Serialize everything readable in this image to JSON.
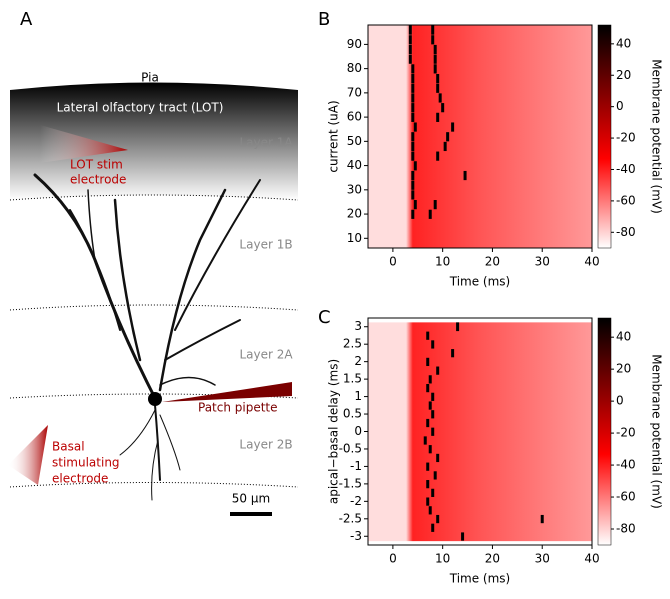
{
  "panel_a": {
    "label": "A",
    "pia": "Pia",
    "lot": "Lateral olfactory tract (LOT)",
    "layers": [
      "Layer 1A",
      "Layer 1B",
      "Layer 2A",
      "Layer 2B"
    ],
    "lot_stim": [
      "LOT stim",
      "electrode"
    ],
    "patch": "Patch pipette",
    "basal": [
      "Basal",
      "stimulating",
      "electrode"
    ],
    "scale": "50 µm"
  },
  "chart_data": [
    {
      "type": "heatmap",
      "panel": "B",
      "xlabel": "Time (ms)",
      "ylabel": "current (uA)",
      "colorbar_label": "Membrane potential (mV)",
      "xlim": [
        -5,
        40
      ],
      "xticks": [
        0,
        10,
        20,
        30,
        40
      ],
      "ylim": [
        6,
        98
      ],
      "yticks": [
        10,
        20,
        30,
        40,
        50,
        60,
        70,
        80,
        90
      ],
      "clim": [
        -90,
        52
      ],
      "cticks": [
        -80,
        -60,
        -40,
        -20,
        0,
        20,
        40
      ],
      "rows": [
        8,
        12,
        16,
        20,
        24,
        28,
        32,
        36,
        40,
        44,
        48,
        52,
        56,
        60,
        64,
        68,
        72,
        76,
        80,
        84,
        88,
        92,
        96
      ],
      "spikes": [
        [],
        [],
        [],
        [
          4,
          7.5
        ],
        [
          4.5,
          8.5
        ],
        [
          4
        ],
        [
          4
        ],
        [
          4,
          14.5
        ],
        [
          4.5
        ],
        [
          4,
          9
        ],
        [
          4,
          10.5
        ],
        [
          4,
          11
        ],
        [
          4.5,
          12
        ],
        [
          4,
          9
        ],
        [
          4,
          10
        ],
        [
          4,
          9.5
        ],
        [
          4,
          9
        ],
        [
          4,
          9
        ],
        [
          4,
          8.5
        ],
        [
          3.5,
          8.5
        ],
        [
          3.5,
          8.5
        ],
        [
          3.5,
          8
        ],
        [
          3.5,
          8
        ]
      ]
    },
    {
      "type": "heatmap",
      "panel": "C",
      "xlabel": "Time (ms)",
      "ylabel": "apical−basal delay (ms)",
      "colorbar_label": "Membrane potential (mV)",
      "xlim": [
        -5,
        40
      ],
      "xticks": [
        0,
        10,
        20,
        30,
        40
      ],
      "ylim": [
        -3.25,
        3.25
      ],
      "yticks": [
        {
          "value": -3,
          "label": "-3"
        },
        {
          "value": -2.5,
          "label": "-2.5"
        },
        {
          "value": -2,
          "label": "-2"
        },
        {
          "value": -1.5,
          "label": "-1.5"
        },
        {
          "value": -1,
          "label": "-1"
        },
        {
          "value": -0.5,
          "label": "-0.5"
        },
        0,
        0.5,
        1,
        1.5,
        2,
        2.5,
        3
      ],
      "clim": [
        -90,
        52
      ],
      "cticks": [
        -80,
        -60,
        -40,
        -20,
        0,
        20,
        40
      ],
      "rows": [
        -3,
        -2.75,
        -2.5,
        -2.25,
        -2,
        -1.75,
        -1.5,
        -1.25,
        -1,
        -0.75,
        -0.5,
        -0.25,
        0,
        0.25,
        0.5,
        0.75,
        1,
        1.25,
        1.5,
        1.75,
        2,
        2.25,
        2.5,
        2.75,
        3
      ],
      "spikes": [
        [
          14
        ],
        [
          8
        ],
        [
          9,
          30
        ],
        [
          7.5
        ],
        [
          7
        ],
        [
          8
        ],
        [
          7
        ],
        [
          8.5
        ],
        [
          7
        ],
        [
          9
        ],
        [
          7.5
        ],
        [
          6.5
        ],
        [
          8
        ],
        [
          7
        ],
        [
          8
        ],
        [
          7.5
        ],
        [
          8
        ],
        [
          7
        ],
        [
          7.5
        ],
        [
          9
        ],
        [
          7
        ],
        [
          12
        ],
        [
          8
        ],
        [
          7
        ],
        [
          13
        ]
      ]
    }
  ]
}
